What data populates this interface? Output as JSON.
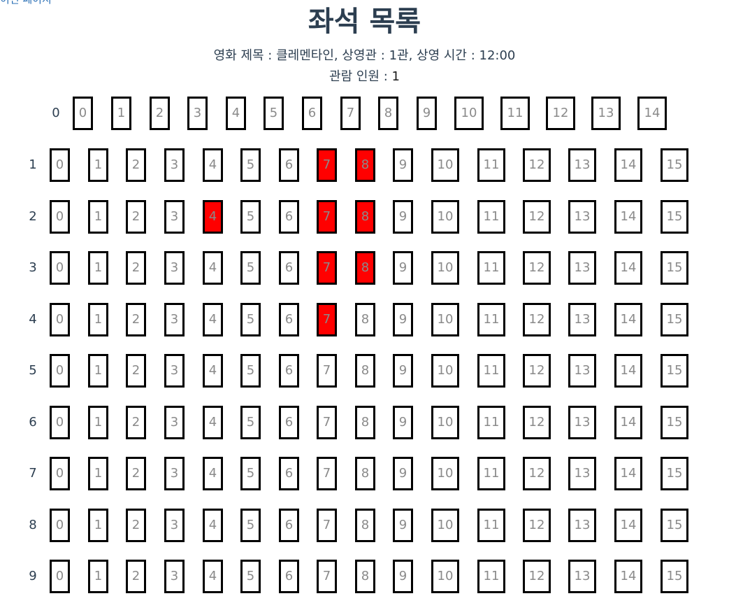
{
  "header": {
    "back_link": "이전 페이지",
    "title": "좌석 목록"
  },
  "info": {
    "movie_label": "영화 제목 : ",
    "movie_title": "클레멘타인",
    "theater_label": ", 상영관 : ",
    "theater": "1관",
    "time_label": ", 상영 시간 : ",
    "time": "12:00",
    "audience_label": "관람 인원 : ",
    "audience_count": "1"
  },
  "seating": {
    "header_row_label": "0",
    "header_seats": [
      "0",
      "1",
      "2",
      "3",
      "4",
      "5",
      "6",
      "7",
      "8",
      "9",
      "10",
      "11",
      "12",
      "13",
      "14"
    ],
    "rows": [
      {
        "label": "1",
        "taken": [
          7,
          8
        ]
      },
      {
        "label": "2",
        "taken": [
          4,
          7,
          8
        ]
      },
      {
        "label": "3",
        "taken": [
          7,
          8
        ]
      },
      {
        "label": "4",
        "taken": [
          7
        ]
      },
      {
        "label": "5",
        "taken": []
      },
      {
        "label": "6",
        "taken": []
      },
      {
        "label": "7",
        "taken": []
      },
      {
        "label": "8",
        "taken": []
      },
      {
        "label": "9",
        "taken": []
      }
    ],
    "seat_numbers": [
      "0",
      "1",
      "2",
      "3",
      "4",
      "5",
      "6",
      "7",
      "8",
      "9",
      "10",
      "11",
      "12",
      "13",
      "14",
      "15"
    ],
    "taken_color": "#ff0000",
    "free_color": "#ffffff"
  }
}
